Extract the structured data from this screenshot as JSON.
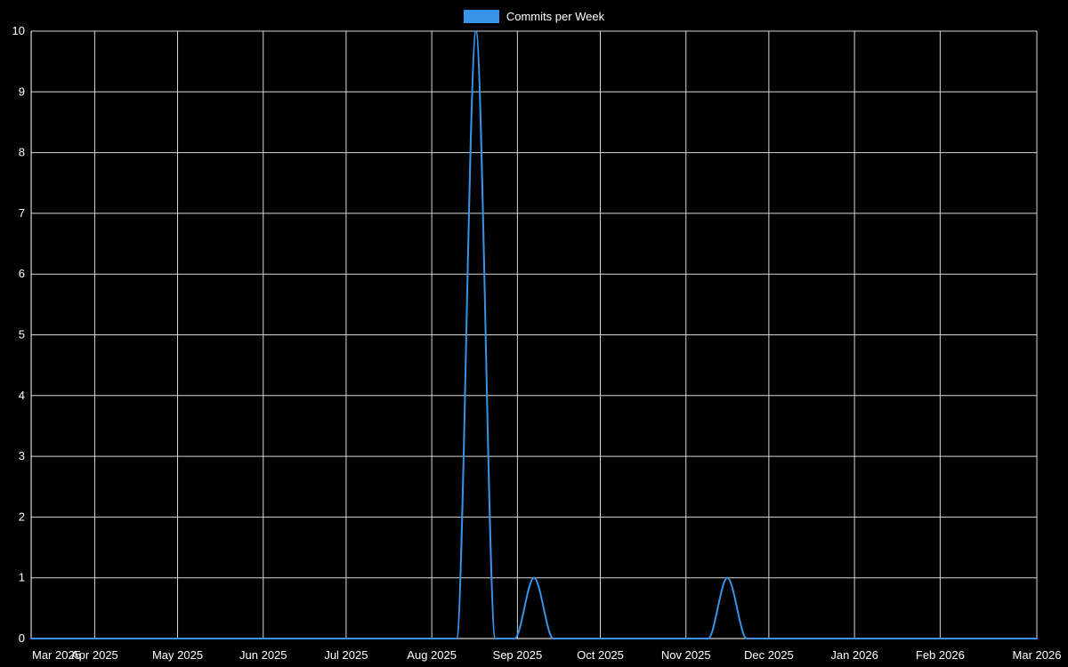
{
  "legend": {
    "label": "Commits per Week"
  },
  "chart_data": {
    "type": "line",
    "title": "",
    "legend_position": "top",
    "grid": true,
    "bg_color": "#000000",
    "grid_color": "#d8d8d8",
    "axis_color": "#ffffff",
    "text_color": "#ffffff",
    "line_color": "#3693e8",
    "x_unit": "week",
    "x_start": "2025-03-09",
    "x_step_days": 7,
    "ylim": [
      0,
      10
    ],
    "y_ticks": [
      0,
      1,
      2,
      3,
      4,
      5,
      6,
      7,
      8,
      9,
      10
    ],
    "x_ticks": [
      {
        "label": "Mar 2025",
        "date": "2025-03-09",
        "align": "start"
      },
      {
        "label": "Apr 2025",
        "date": "2025-04-01",
        "align": "middle"
      },
      {
        "label": "May 2025",
        "date": "2025-05-01",
        "align": "middle"
      },
      {
        "label": "Jun 2025",
        "date": "2025-06-01",
        "align": "middle"
      },
      {
        "label": "Jul 2025",
        "date": "2025-07-01",
        "align": "middle"
      },
      {
        "label": "Aug 2025",
        "date": "2025-08-01",
        "align": "middle"
      },
      {
        "label": "Sep 2025",
        "date": "2025-09-01",
        "align": "middle"
      },
      {
        "label": "Oct 2025",
        "date": "2025-10-01",
        "align": "middle"
      },
      {
        "label": "Nov 2025",
        "date": "2025-11-01",
        "align": "middle"
      },
      {
        "label": "Dec 2025",
        "date": "2025-12-01",
        "align": "middle"
      },
      {
        "label": "Jan 2026",
        "date": "2026-01-01",
        "align": "middle"
      },
      {
        "label": "Feb 2026",
        "date": "2026-02-01",
        "align": "middle"
      },
      {
        "label": "Mar 2026",
        "date": "2026-03-08",
        "align": "middle"
      }
    ],
    "series": [
      {
        "name": "Commits per Week",
        "values": [
          0,
          0,
          0,
          0,
          0,
          0,
          0,
          0,
          0,
          0,
          0,
          0,
          0,
          0,
          0,
          0,
          0,
          0,
          0,
          0,
          0,
          0,
          0,
          10,
          0,
          0,
          1,
          0,
          0,
          0,
          0,
          0,
          0,
          0,
          0,
          0,
          1,
          0,
          0,
          0,
          0,
          0,
          0,
          0,
          0,
          0,
          0,
          0,
          0,
          0,
          0,
          0,
          0
        ]
      }
    ]
  }
}
